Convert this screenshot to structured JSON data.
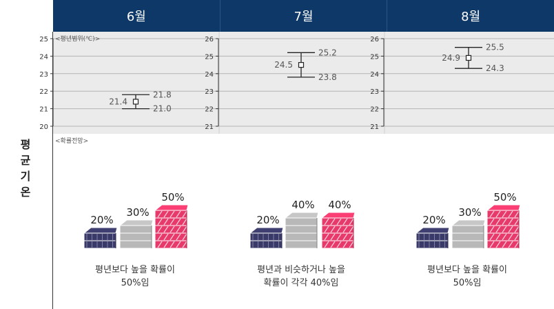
{
  "months": [
    "6월",
    "7월",
    "8월"
  ],
  "row_label": [
    "평",
    "균",
    "기",
    "온"
  ],
  "range_note": "<평년범위(℃)>",
  "forecast_note": "<확률전망>",
  "colors": {
    "header": "#0d3868",
    "below": "#3a3a6a",
    "normal": "#b8b8b8",
    "above": "#e8396b",
    "plot_bg": "#ebebeb"
  },
  "chart_data": [
    {
      "type": "error_bar",
      "month": "6월",
      "ylim": [
        20,
        25
      ],
      "y_ticks": [
        "20",
        "21",
        "22",
        "23",
        "24",
        "25"
      ],
      "center": 21.4,
      "upper": 21.8,
      "lower": 21.0,
      "center_label": "21.4",
      "upper_label": "21.8",
      "lower_label": "21.0"
    },
    {
      "type": "error_bar",
      "month": "7월",
      "ylim": [
        21,
        26
      ],
      "y_ticks": [
        "21",
        "22",
        "23",
        "24",
        "25",
        "26"
      ],
      "center": 24.5,
      "upper": 25.2,
      "lower": 23.8,
      "center_label": "24.5",
      "upper_label": "25.2",
      "lower_label": "23.8"
    },
    {
      "type": "error_bar",
      "month": "8월",
      "ylim": [
        21,
        26
      ],
      "y_ticks": [
        "21",
        "22",
        "23",
        "24",
        "25",
        "26"
      ],
      "center": 24.9,
      "upper": 25.5,
      "lower": 24.3,
      "center_label": "24.9",
      "upper_label": "25.5",
      "lower_label": "24.3"
    }
  ],
  "probabilities": [
    {
      "values": [
        20,
        30,
        50
      ],
      "labels": [
        "20%",
        "30%",
        "50%"
      ],
      "caption1": "평년보다 높을 확률이",
      "caption2": "50%임"
    },
    {
      "values": [
        20,
        40,
        40
      ],
      "labels": [
        "20%",
        "40%",
        "40%"
      ],
      "caption1": "평년과 비슷하거나 높을",
      "caption2": "확률이 각각 40%임"
    },
    {
      "values": [
        20,
        30,
        50
      ],
      "labels": [
        "20%",
        "30%",
        "50%"
      ],
      "caption1": "평년보다 높을 확률이",
      "caption2": "50%임"
    }
  ]
}
